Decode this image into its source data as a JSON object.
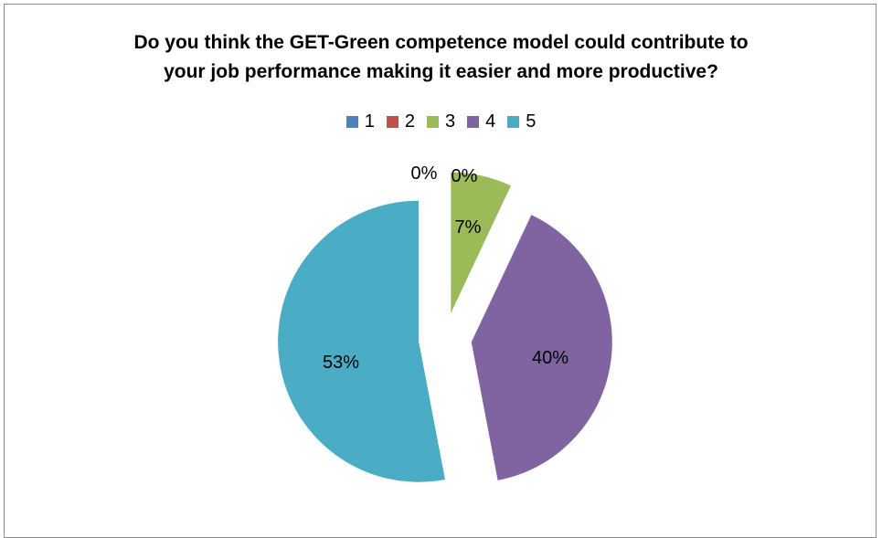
{
  "chart_data": {
    "type": "pie",
    "title_lines": [
      "Do you think the GET-Green competence model could contribute to",
      "your job performance making it easier and more productive?"
    ],
    "categories": [
      "1",
      "2",
      "3",
      "4",
      "5"
    ],
    "values": [
      0,
      0,
      7,
      40,
      53
    ],
    "labels": [
      "0%",
      "0%",
      "7%",
      "40%",
      "53%"
    ],
    "colors": [
      "#4f81bd",
      "#c0504d",
      "#9bbb59",
      "#8064a2",
      "#4bacc6"
    ],
    "legend_position": "top",
    "exploded": true
  }
}
